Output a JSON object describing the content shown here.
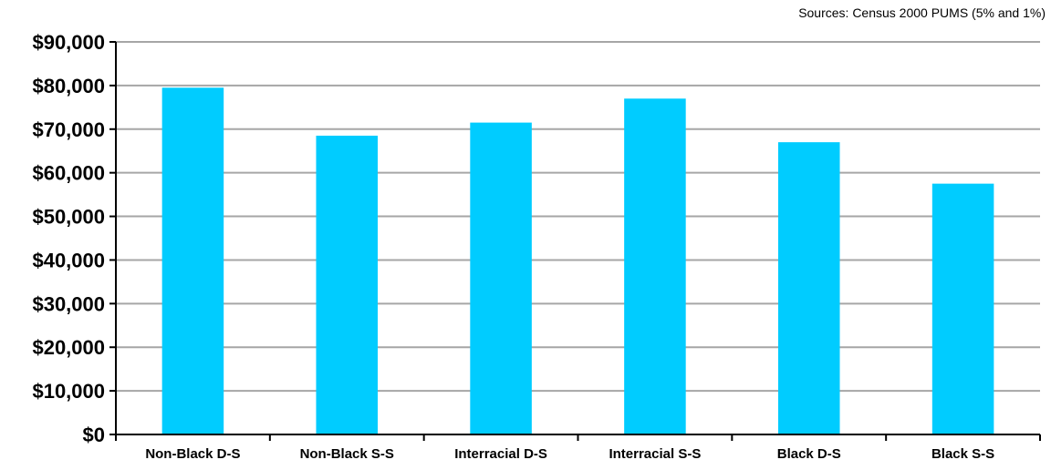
{
  "chart_data": {
    "type": "bar",
    "source_note": "Sources: Census 2000 PUMS (5% and 1%)",
    "categories": [
      "Non-Black D-S",
      "Non-Black S-S",
      "Interracial D-S",
      "Interracial S-S",
      "Black D-S",
      "Black S-S"
    ],
    "values": [
      79500,
      68500,
      71500,
      77000,
      67000,
      57500
    ],
    "ylim": [
      0,
      90000
    ],
    "yticks": [
      0,
      10000,
      20000,
      30000,
      40000,
      50000,
      60000,
      70000,
      80000,
      90000
    ],
    "ytick_labels": [
      "$0",
      "$10,000",
      "$20,000",
      "$30,000",
      "$40,000",
      "$50,000",
      "$60,000",
      "$70,000",
      "$80,000",
      "$90,000"
    ],
    "grid": true,
    "legend": "none",
    "bar_color": "#00ccff"
  }
}
